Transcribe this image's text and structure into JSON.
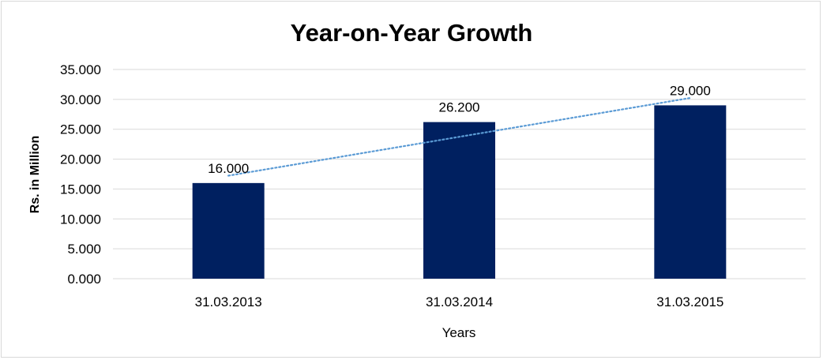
{
  "chart_data": {
    "type": "bar",
    "title": "Year-on-Year Growth",
    "xlabel": "Years",
    "ylabel": "Rs. in Million",
    "categories": [
      "31.03.2013",
      "31.03.2014",
      "31.03.2015"
    ],
    "values": [
      16.0,
      26.2,
      29.0
    ],
    "data_labels": [
      "16.000",
      "26.200",
      "29.000"
    ],
    "ylim": [
      0,
      35
    ],
    "yticks": [
      "0.000",
      "5.000",
      "10.000",
      "15.000",
      "20.000",
      "25.000",
      "30.000",
      "35.000"
    ],
    "ytick_values": [
      0,
      5,
      10,
      15,
      20,
      25,
      30,
      35
    ],
    "grid": true,
    "trendline": "linear",
    "colors": {
      "bar": "#002060",
      "trendline": "#5b9bd5",
      "grid": "#d9d9d9",
      "text": "#000000"
    }
  }
}
